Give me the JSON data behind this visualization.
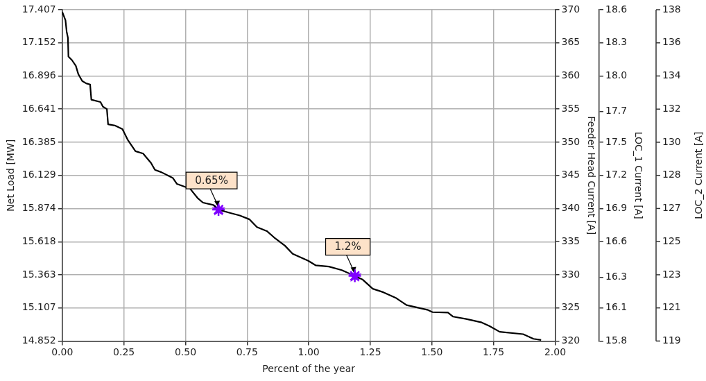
{
  "chart_data": {
    "type": "line",
    "xlabel": "Percent of the year",
    "ylabel": "Net Load [MW]",
    "y2label": "Feeder Head Current [A]",
    "y3label": "LOC_1 Current [A]",
    "xlim": [
      0,
      2
    ],
    "xticks": [
      {
        "value": 0,
        "label": "0.00"
      },
      {
        "value": 0.25,
        "label": "0.25"
      },
      {
        "value": 0.5,
        "label": "0.50"
      },
      {
        "value": 0.75,
        "label": "0.75"
      },
      {
        "value": 1,
        "label": "1.00"
      },
      {
        "value": 1.25,
        "label": "1.25"
      },
      {
        "value": 1.5,
        "label": "1.50"
      },
      {
        "value": 1.75,
        "label": "1.75"
      },
      {
        "value": 2,
        "label": "2.00"
      }
    ],
    "ylim": [
      14.852,
      17.407
    ],
    "yticks": [
      14.852,
      15.107,
      15.363,
      15.618,
      15.874,
      16.129,
      16.385,
      16.641,
      16.896,
      17.152,
      17.407
    ],
    "y2lim": [
      320,
      370
    ],
    "y2ticks": [
      320,
      325,
      330,
      335,
      340,
      345,
      350,
      355,
      360,
      365,
      370
    ],
    "y3lim": [
      15.8,
      18.6
    ],
    "y3ticks": [
      {
        "value": 15.8,
        "label": "15.8"
      },
      {
        "value": 16.08,
        "label": "16.1"
      },
      {
        "value": 16.34,
        "label": "16.3"
      },
      {
        "value": 16.64,
        "label": "16.6"
      },
      {
        "value": 16.92,
        "label": "16.9"
      },
      {
        "value": 17.2,
        "label": "17.2"
      },
      {
        "value": 17.48,
        "label": "17.5"
      },
      {
        "value": 17.74,
        "label": "17.7"
      },
      {
        "value": 18.04,
        "label": "18.0"
      },
      {
        "value": 18.32,
        "label": "18.3"
      },
      {
        "value": 18.6,
        "label": "18.6"
      }
    ],
    "grid": true,
    "legend": false,
    "series": [
      {
        "type": "line",
        "color": "#000000",
        "marker": "none",
        "x": [
          0,
          0.013,
          0.018,
          0.023,
          0.025,
          0.039,
          0.055,
          0.065,
          0.081,
          0.097,
          0.113,
          0.118,
          0.155,
          0.165,
          0.181,
          0.186,
          0.213,
          0.244,
          0.265,
          0.297,
          0.328,
          0.36,
          0.376,
          0.402,
          0.449,
          0.465,
          0.518,
          0.549,
          0.571,
          0.613,
          0.634,
          0.68,
          0.72,
          0.76,
          0.79,
          0.83,
          0.86,
          0.903,
          0.935,
          0.998,
          1.029,
          1.082,
          1.134,
          1.187,
          1.218,
          1.26,
          1.303,
          1.355,
          1.397,
          1.481,
          1.502,
          1.565,
          1.586,
          1.639,
          1.702,
          1.733,
          1.775,
          1.87,
          1.912,
          1.943
        ],
        "values": [
          17.39,
          17.326,
          17.236,
          17.191,
          17.046,
          17.019,
          16.974,
          16.911,
          16.857,
          16.839,
          16.83,
          16.713,
          16.695,
          16.659,
          16.641,
          16.523,
          16.514,
          16.487,
          16.406,
          16.316,
          16.298,
          16.226,
          16.172,
          16.154,
          16.109,
          16.064,
          16.028,
          15.955,
          15.919,
          15.901,
          15.865,
          15.84,
          15.82,
          15.79,
          15.73,
          15.7,
          15.65,
          15.588,
          15.525,
          15.471,
          15.435,
          15.426,
          15.399,
          15.354,
          15.327,
          15.255,
          15.228,
          15.183,
          15.129,
          15.093,
          15.075,
          15.072,
          15.04,
          15.022,
          14.995,
          14.968,
          14.923,
          14.905,
          14.869,
          14.86
        ]
      },
      {
        "type": "scatter",
        "color": "#7f00ff",
        "marker": "star",
        "x": [
          0.634,
          1.187
        ],
        "values": [
          15.865,
          15.354
        ]
      }
    ],
    "annotations": [
      {
        "text": "0.65%",
        "x": 0.634,
        "y": 15.865
      },
      {
        "text": "1.2%",
        "x": 1.187,
        "y": 15.354
      },
      "LOC_2 Current [A]",
      "119",
      "121",
      "123",
      "125",
      "127",
      "128",
      "130",
      "132",
      "134",
      "136",
      "138"
    ]
  }
}
